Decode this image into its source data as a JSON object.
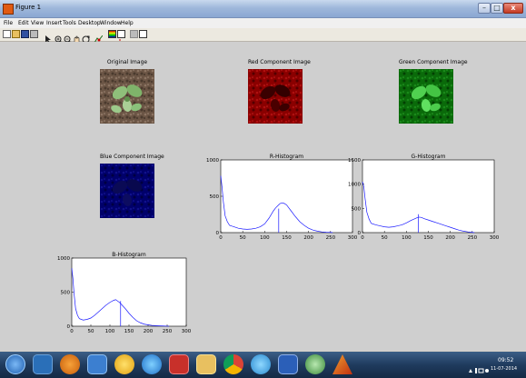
{
  "window": {
    "title": "Figure 1",
    "min_symbol": "–",
    "max_symbol": "□",
    "close_symbol": "x"
  },
  "menu": [
    "File",
    "Edit",
    "View",
    "Insert",
    "Tools",
    "Desktop",
    "Window",
    "Help"
  ],
  "toolbar_icons": [
    "new-figure-icon",
    "open-file-icon",
    "save-icon",
    "print-icon",
    "edit-plot-arrow-icon",
    "zoom-in-icon",
    "zoom-out-icon",
    "pan-hand-icon",
    "rotate-3d-icon",
    "data-cursor-icon",
    "insert-colorbar-icon",
    "insert-legend-icon",
    "hide-plot-tools-icon",
    "show-plot-tools-icon"
  ],
  "images": {
    "original": {
      "title": "Original Image"
    },
    "red": {
      "title": "Red Component Image"
    },
    "green": {
      "title": "Green Component Image"
    },
    "blue": {
      "title": "Blue Component Image"
    }
  },
  "chart_data": [
    {
      "type": "line",
      "title": "R-Histogram",
      "xlim": [
        0,
        300
      ],
      "ylim": [
        0,
        1000
      ],
      "xticks": [
        "0",
        "50",
        "100",
        "150",
        "200",
        "250",
        "300"
      ],
      "yticks": [
        "0",
        "500",
        "1000"
      ],
      "color": "#1a1aff",
      "x": [
        0,
        3,
        6,
        10,
        15,
        20,
        30,
        40,
        50,
        60,
        70,
        80,
        90,
        100,
        110,
        120,
        125,
        130,
        135,
        140,
        145,
        150,
        160,
        170,
        180,
        190,
        200,
        210,
        220,
        230,
        240,
        250,
        255
      ],
      "y": [
        780,
        620,
        420,
        230,
        150,
        100,
        80,
        60,
        50,
        45,
        50,
        60,
        80,
        120,
        200,
        300,
        340,
        370,
        400,
        410,
        400,
        380,
        300,
        220,
        150,
        100,
        60,
        35,
        20,
        10,
        5,
        3,
        0
      ],
      "spike": {
        "x": 132,
        "y": 330
      }
    },
    {
      "type": "line",
      "title": "G-Histogram",
      "xlim": [
        0,
        300
      ],
      "ylim": [
        0,
        1500
      ],
      "xticks": [
        "0",
        "50",
        "100",
        "150",
        "200",
        "250",
        "300"
      ],
      "yticks": [
        "0",
        "500",
        "1000",
        "1500"
      ],
      "color": "#1a1aff",
      "x": [
        0,
        3,
        6,
        10,
        15,
        20,
        30,
        40,
        50,
        60,
        70,
        80,
        90,
        100,
        110,
        120,
        125,
        130,
        135,
        140,
        150,
        160,
        170,
        180,
        190,
        200,
        210,
        220,
        230,
        240,
        250,
        255
      ],
      "y": [
        1050,
        950,
        700,
        420,
        280,
        190,
        160,
        140,
        120,
        110,
        120,
        140,
        160,
        200,
        250,
        290,
        310,
        320,
        310,
        290,
        260,
        230,
        200,
        170,
        140,
        110,
        80,
        50,
        30,
        15,
        5,
        0
      ],
      "spike": {
        "x": 127,
        "y": 380
      }
    },
    {
      "type": "line",
      "title": "B-Histogram",
      "xlim": [
        0,
        300
      ],
      "ylim": [
        0,
        1000
      ],
      "xticks": [
        "0",
        "50",
        "100",
        "150",
        "200",
        "250",
        "300"
      ],
      "yticks": [
        "0",
        "500",
        "1000"
      ],
      "color": "#1a1aff",
      "x": [
        0,
        3,
        6,
        10,
        15,
        20,
        30,
        40,
        50,
        60,
        70,
        80,
        90,
        100,
        110,
        115,
        120,
        125,
        130,
        140,
        150,
        160,
        170,
        180,
        190,
        200,
        210,
        220,
        230,
        240,
        250,
        255
      ],
      "y": [
        850,
        700,
        480,
        260,
        160,
        110,
        90,
        100,
        120,
        160,
        210,
        260,
        310,
        350,
        380,
        390,
        370,
        350,
        320,
        260,
        190,
        130,
        80,
        50,
        30,
        20,
        12,
        8,
        5,
        3,
        1,
        0
      ],
      "spike": {
        "x": 128,
        "y": 370
      }
    }
  ],
  "taskbar": {
    "apps": [
      "start-orb-icon",
      "file-manager-icon",
      "media-player-icon",
      "document-app-icon",
      "messenger-icon",
      "internet-explorer-icon",
      "pdf-reader-icon",
      "folder-icon",
      "chrome-icon",
      "browser-icon",
      "word-icon",
      "network-icon",
      "matlab-icon"
    ],
    "time": "09:52",
    "date": "11-07-2014"
  }
}
